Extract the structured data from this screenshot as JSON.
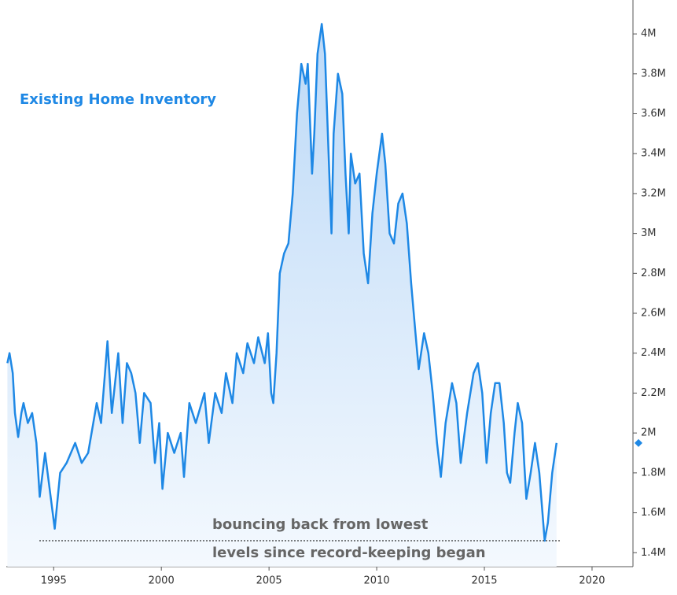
{
  "chart_data": {
    "type": "line",
    "title": "Existing Home Inventory",
    "x": [
      1992.85,
      1992.95,
      1993.1,
      1993.2,
      1993.35,
      1993.5,
      1993.6,
      1993.8,
      1994.0,
      1994.2,
      1994.35,
      1994.6,
      1995.05,
      1995.3,
      1995.6,
      1996.0,
      1996.3,
      1996.6,
      1997.0,
      1997.2,
      1997.5,
      1997.7,
      1998.0,
      1998.2,
      1998.4,
      1998.6,
      1998.8,
      1999.0,
      1999.2,
      1999.5,
      1999.7,
      1999.9,
      2000.05,
      2000.3,
      2000.6,
      2000.9,
      2001.05,
      2001.3,
      2001.6,
      2002.0,
      2002.2,
      2002.5,
      2002.8,
      2003.0,
      2003.3,
      2003.5,
      2003.8,
      2004.0,
      2004.3,
      2004.5,
      2004.8,
      2004.95,
      2005.1,
      2005.2,
      2005.35,
      2005.5,
      2005.7,
      2005.9,
      2006.1,
      2006.3,
      2006.5,
      2006.7,
      2006.8,
      2007.0,
      2007.1,
      2007.25,
      2007.45,
      2007.6,
      2007.8,
      2007.9,
      2008.0,
      2008.2,
      2008.4,
      2008.55,
      2008.7,
      2008.8,
      2009.0,
      2009.2,
      2009.4,
      2009.6,
      2009.8,
      2010.0,
      2010.25,
      2010.4,
      2010.6,
      2010.8,
      2011.0,
      2011.2,
      2011.4,
      2011.6,
      2011.8,
      2011.95,
      2012.2,
      2012.4,
      2012.6,
      2012.8,
      2012.98,
      2013.2,
      2013.5,
      2013.7,
      2013.9,
      2014.2,
      2014.5,
      2014.7,
      2014.9,
      2015.1,
      2015.3,
      2015.5,
      2015.7,
      2015.9,
      2016.05,
      2016.2,
      2016.4,
      2016.55,
      2016.75,
      2016.85,
      2016.95,
      2017.15,
      2017.35,
      2017.55,
      2017.8,
      2017.95,
      2018.15,
      2018.35
    ],
    "series": [
      {
        "name": "Existing Home Inventory",
        "color": "#1e88e5",
        "values": [
          2350000,
          2400000,
          2300000,
          2100000,
          1980000,
          2100000,
          2150000,
          2050000,
          2100000,
          1950000,
          1680000,
          1900000,
          1520000,
          1800000,
          1850000,
          1950000,
          1850000,
          1900000,
          2150000,
          2050000,
          2460000,
          2100000,
          2400000,
          2050000,
          2350000,
          2300000,
          2200000,
          1950000,
          2200000,
          2150000,
          1850000,
          2050000,
          1720000,
          2000000,
          1900000,
          2000000,
          1780000,
          2150000,
          2050000,
          2200000,
          1950000,
          2200000,
          2100000,
          2300000,
          2150000,
          2400000,
          2300000,
          2450000,
          2350000,
          2480000,
          2350000,
          2500000,
          2200000,
          2150000,
          2400000,
          2800000,
          2900000,
          2950000,
          3200000,
          3600000,
          3850000,
          3750000,
          3850000,
          3300000,
          3500000,
          3900000,
          4050000,
          3900000,
          3300000,
          3000000,
          3500000,
          3800000,
          3700000,
          3300000,
          3000000,
          3400000,
          3250000,
          3300000,
          2900000,
          2750000,
          3100000,
          3300000,
          3500000,
          3350000,
          3000000,
          2950000,
          3150000,
          3200000,
          3050000,
          2750000,
          2500000,
          2320000,
          2500000,
          2400000,
          2200000,
          1950000,
          1780000,
          2050000,
          2250000,
          2150000,
          1850000,
          2100000,
          2300000,
          2350000,
          2200000,
          1850000,
          2100000,
          2250000,
          2250000,
          2050000,
          1800000,
          1750000,
          2000000,
          2150000,
          2050000,
          1850000,
          1670000,
          1800000,
          1950000,
          1800000,
          1460000,
          1550000,
          1800000,
          1950000
        ]
      }
    ],
    "xlim": [
      1992.8,
      2021.9
    ],
    "xticks": [
      1995,
      2000,
      2005,
      2010,
      2015,
      2020
    ],
    "ylim": [
      1330000,
      4170000
    ],
    "yticks": [
      {
        "value": 1400000,
        "label": "1.4M"
      },
      {
        "value": 1600000,
        "label": "1.6M"
      },
      {
        "value": 1800000,
        "label": "1.8M"
      },
      {
        "value": 2000000,
        "label": "2M"
      },
      {
        "value": 2200000,
        "label": "2.2M"
      },
      {
        "value": 2400000,
        "label": "2.4M"
      },
      {
        "value": 2600000,
        "label": "2.6M"
      },
      {
        "value": 2800000,
        "label": "2.8M"
      },
      {
        "value": 3000000,
        "label": "3M"
      },
      {
        "value": 3200000,
        "label": "3.2M"
      },
      {
        "value": 3400000,
        "label": "3.4M"
      },
      {
        "value": 3600000,
        "label": "3.6M"
      },
      {
        "value": 3800000,
        "label": "3.8M"
      },
      {
        "value": 4000000,
        "label": "4M"
      }
    ],
    "annotation": {
      "lines": [
        "bouncing back from lowest",
        "levels since record-keeping began"
      ],
      "value": 1460000
    }
  }
}
